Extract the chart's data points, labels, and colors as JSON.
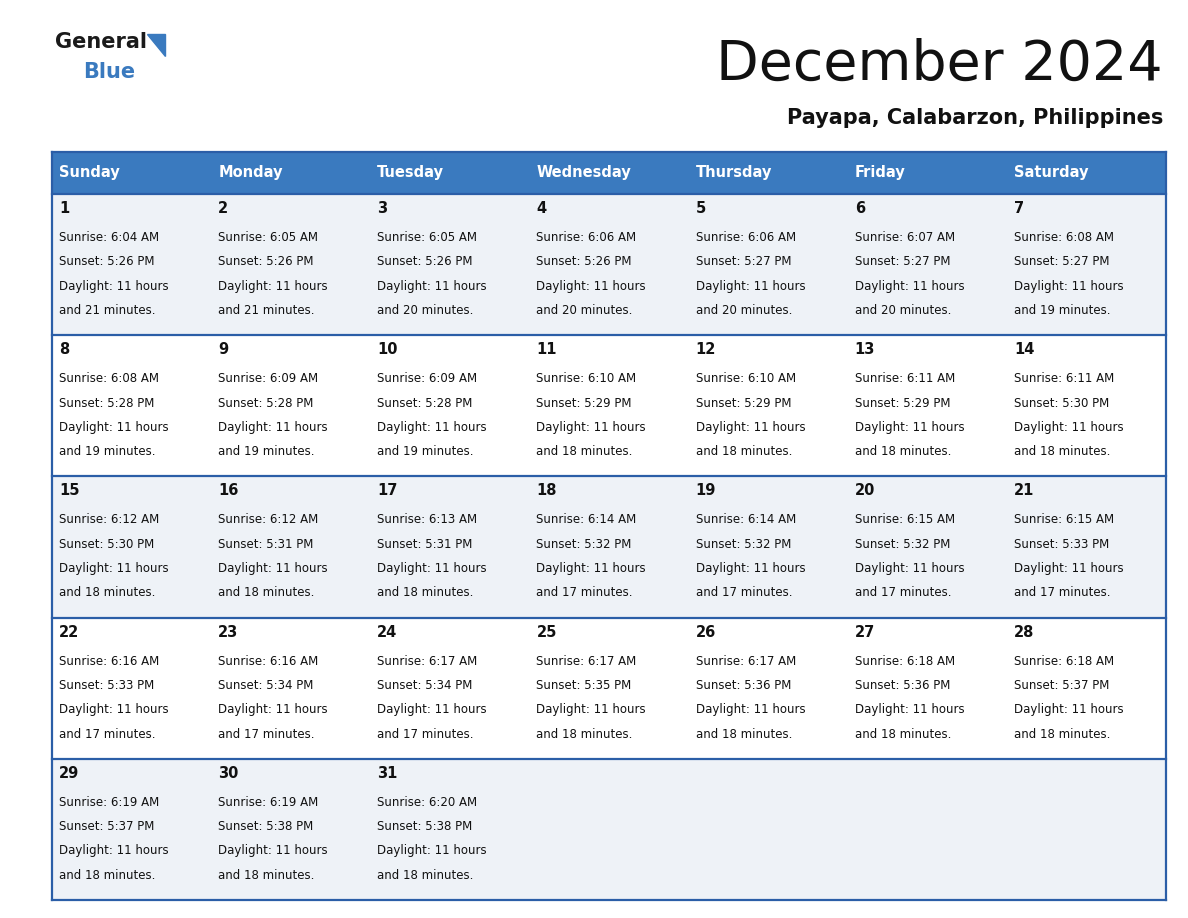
{
  "title": "December 2024",
  "subtitle": "Payapa, Calabarzon, Philippines",
  "header_bg": "#3a7abf",
  "header_text": "#ffffff",
  "cell_bg_light": "#eef2f7",
  "cell_bg_white": "#ffffff",
  "row_line_color": "#2b5ea7",
  "days_of_week": [
    "Sunday",
    "Monday",
    "Tuesday",
    "Wednesday",
    "Thursday",
    "Friday",
    "Saturday"
  ],
  "calendar_data": [
    [
      {
        "day": 1,
        "sunrise": "6:04 AM",
        "sunset": "5:26 PM",
        "daylight": "11 hours",
        "daylight2": "and 21 minutes."
      },
      {
        "day": 2,
        "sunrise": "6:05 AM",
        "sunset": "5:26 PM",
        "daylight": "11 hours",
        "daylight2": "and 21 minutes."
      },
      {
        "day": 3,
        "sunrise": "6:05 AM",
        "sunset": "5:26 PM",
        "daylight": "11 hours",
        "daylight2": "and 20 minutes."
      },
      {
        "day": 4,
        "sunrise": "6:06 AM",
        "sunset": "5:26 PM",
        "daylight": "11 hours",
        "daylight2": "and 20 minutes."
      },
      {
        "day": 5,
        "sunrise": "6:06 AM",
        "sunset": "5:27 PM",
        "daylight": "11 hours",
        "daylight2": "and 20 minutes."
      },
      {
        "day": 6,
        "sunrise": "6:07 AM",
        "sunset": "5:27 PM",
        "daylight": "11 hours",
        "daylight2": "and 20 minutes."
      },
      {
        "day": 7,
        "sunrise": "6:08 AM",
        "sunset": "5:27 PM",
        "daylight": "11 hours",
        "daylight2": "and 19 minutes."
      }
    ],
    [
      {
        "day": 8,
        "sunrise": "6:08 AM",
        "sunset": "5:28 PM",
        "daylight": "11 hours",
        "daylight2": "and 19 minutes."
      },
      {
        "day": 9,
        "sunrise": "6:09 AM",
        "sunset": "5:28 PM",
        "daylight": "11 hours",
        "daylight2": "and 19 minutes."
      },
      {
        "day": 10,
        "sunrise": "6:09 AM",
        "sunset": "5:28 PM",
        "daylight": "11 hours",
        "daylight2": "and 19 minutes."
      },
      {
        "day": 11,
        "sunrise": "6:10 AM",
        "sunset": "5:29 PM",
        "daylight": "11 hours",
        "daylight2": "and 18 minutes."
      },
      {
        "day": 12,
        "sunrise": "6:10 AM",
        "sunset": "5:29 PM",
        "daylight": "11 hours",
        "daylight2": "and 18 minutes."
      },
      {
        "day": 13,
        "sunrise": "6:11 AM",
        "sunset": "5:29 PM",
        "daylight": "11 hours",
        "daylight2": "and 18 minutes."
      },
      {
        "day": 14,
        "sunrise": "6:11 AM",
        "sunset": "5:30 PM",
        "daylight": "11 hours",
        "daylight2": "and 18 minutes."
      }
    ],
    [
      {
        "day": 15,
        "sunrise": "6:12 AM",
        "sunset": "5:30 PM",
        "daylight": "11 hours",
        "daylight2": "and 18 minutes."
      },
      {
        "day": 16,
        "sunrise": "6:12 AM",
        "sunset": "5:31 PM",
        "daylight": "11 hours",
        "daylight2": "and 18 minutes."
      },
      {
        "day": 17,
        "sunrise": "6:13 AM",
        "sunset": "5:31 PM",
        "daylight": "11 hours",
        "daylight2": "and 18 minutes."
      },
      {
        "day": 18,
        "sunrise": "6:14 AM",
        "sunset": "5:32 PM",
        "daylight": "11 hours",
        "daylight2": "and 17 minutes."
      },
      {
        "day": 19,
        "sunrise": "6:14 AM",
        "sunset": "5:32 PM",
        "daylight": "11 hours",
        "daylight2": "and 17 minutes."
      },
      {
        "day": 20,
        "sunrise": "6:15 AM",
        "sunset": "5:32 PM",
        "daylight": "11 hours",
        "daylight2": "and 17 minutes."
      },
      {
        "day": 21,
        "sunrise": "6:15 AM",
        "sunset": "5:33 PM",
        "daylight": "11 hours",
        "daylight2": "and 17 minutes."
      }
    ],
    [
      {
        "day": 22,
        "sunrise": "6:16 AM",
        "sunset": "5:33 PM",
        "daylight": "11 hours",
        "daylight2": "and 17 minutes."
      },
      {
        "day": 23,
        "sunrise": "6:16 AM",
        "sunset": "5:34 PM",
        "daylight": "11 hours",
        "daylight2": "and 17 minutes."
      },
      {
        "day": 24,
        "sunrise": "6:17 AM",
        "sunset": "5:34 PM",
        "daylight": "11 hours",
        "daylight2": "and 17 minutes."
      },
      {
        "day": 25,
        "sunrise": "6:17 AM",
        "sunset": "5:35 PM",
        "daylight": "11 hours",
        "daylight2": "and 18 minutes."
      },
      {
        "day": 26,
        "sunrise": "6:17 AM",
        "sunset": "5:36 PM",
        "daylight": "11 hours",
        "daylight2": "and 18 minutes."
      },
      {
        "day": 27,
        "sunrise": "6:18 AM",
        "sunset": "5:36 PM",
        "daylight": "11 hours",
        "daylight2": "and 18 minutes."
      },
      {
        "day": 28,
        "sunrise": "6:18 AM",
        "sunset": "5:37 PM",
        "daylight": "11 hours",
        "daylight2": "and 18 minutes."
      }
    ],
    [
      {
        "day": 29,
        "sunrise": "6:19 AM",
        "sunset": "5:37 PM",
        "daylight": "11 hours",
        "daylight2": "and 18 minutes."
      },
      {
        "day": 30,
        "sunrise": "6:19 AM",
        "sunset": "5:38 PM",
        "daylight": "11 hours",
        "daylight2": "and 18 minutes."
      },
      {
        "day": 31,
        "sunrise": "6:20 AM",
        "sunset": "5:38 PM",
        "daylight": "11 hours",
        "daylight2": "and 18 minutes."
      },
      null,
      null,
      null,
      null
    ]
  ]
}
